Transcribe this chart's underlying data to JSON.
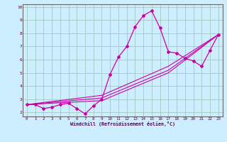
{
  "xlabel": "Windchill (Refroidissement éolien,°C)",
  "background_color": "#cceeff",
  "grid_color": "#aacccc",
  "line_color": "#cc00aa",
  "xlim": [
    -0.5,
    23.5
  ],
  "ylim": [
    1.7,
    10.2
  ],
  "xticks": [
    0,
    1,
    2,
    3,
    4,
    5,
    6,
    7,
    8,
    9,
    10,
    11,
    12,
    13,
    14,
    15,
    16,
    17,
    18,
    19,
    20,
    21,
    22,
    23
  ],
  "yticks": [
    2,
    3,
    4,
    5,
    6,
    7,
    8,
    9,
    10
  ],
  "series1_x": [
    0,
    1,
    2,
    3,
    4,
    5,
    6,
    7,
    8,
    9,
    10,
    11,
    12,
    13,
    14,
    15,
    16,
    17,
    18,
    19,
    20,
    21,
    22,
    23
  ],
  "series1_y": [
    2.6,
    2.6,
    2.3,
    2.4,
    2.6,
    2.7,
    2.3,
    1.9,
    2.5,
    3.0,
    4.9,
    6.2,
    7.0,
    8.5,
    9.35,
    9.7,
    8.4,
    6.6,
    6.5,
    6.1,
    5.9,
    5.5,
    6.7,
    7.9
  ],
  "series2_x": [
    0,
    23
  ],
  "series2_y": [
    2.6,
    7.9
  ],
  "series3_x": [
    0,
    23
  ],
  "series3_y": [
    2.6,
    7.9
  ],
  "series4_x": [
    0,
    23
  ],
  "series4_y": [
    2.6,
    7.9
  ],
  "trend_points_x": [
    0,
    9,
    17,
    23
  ],
  "trend1_y": [
    2.6,
    3.3,
    5.5,
    7.9
  ],
  "trend2_y": [
    2.6,
    3.1,
    5.2,
    7.9
  ],
  "trend3_y": [
    2.6,
    2.9,
    5.0,
    7.9
  ]
}
